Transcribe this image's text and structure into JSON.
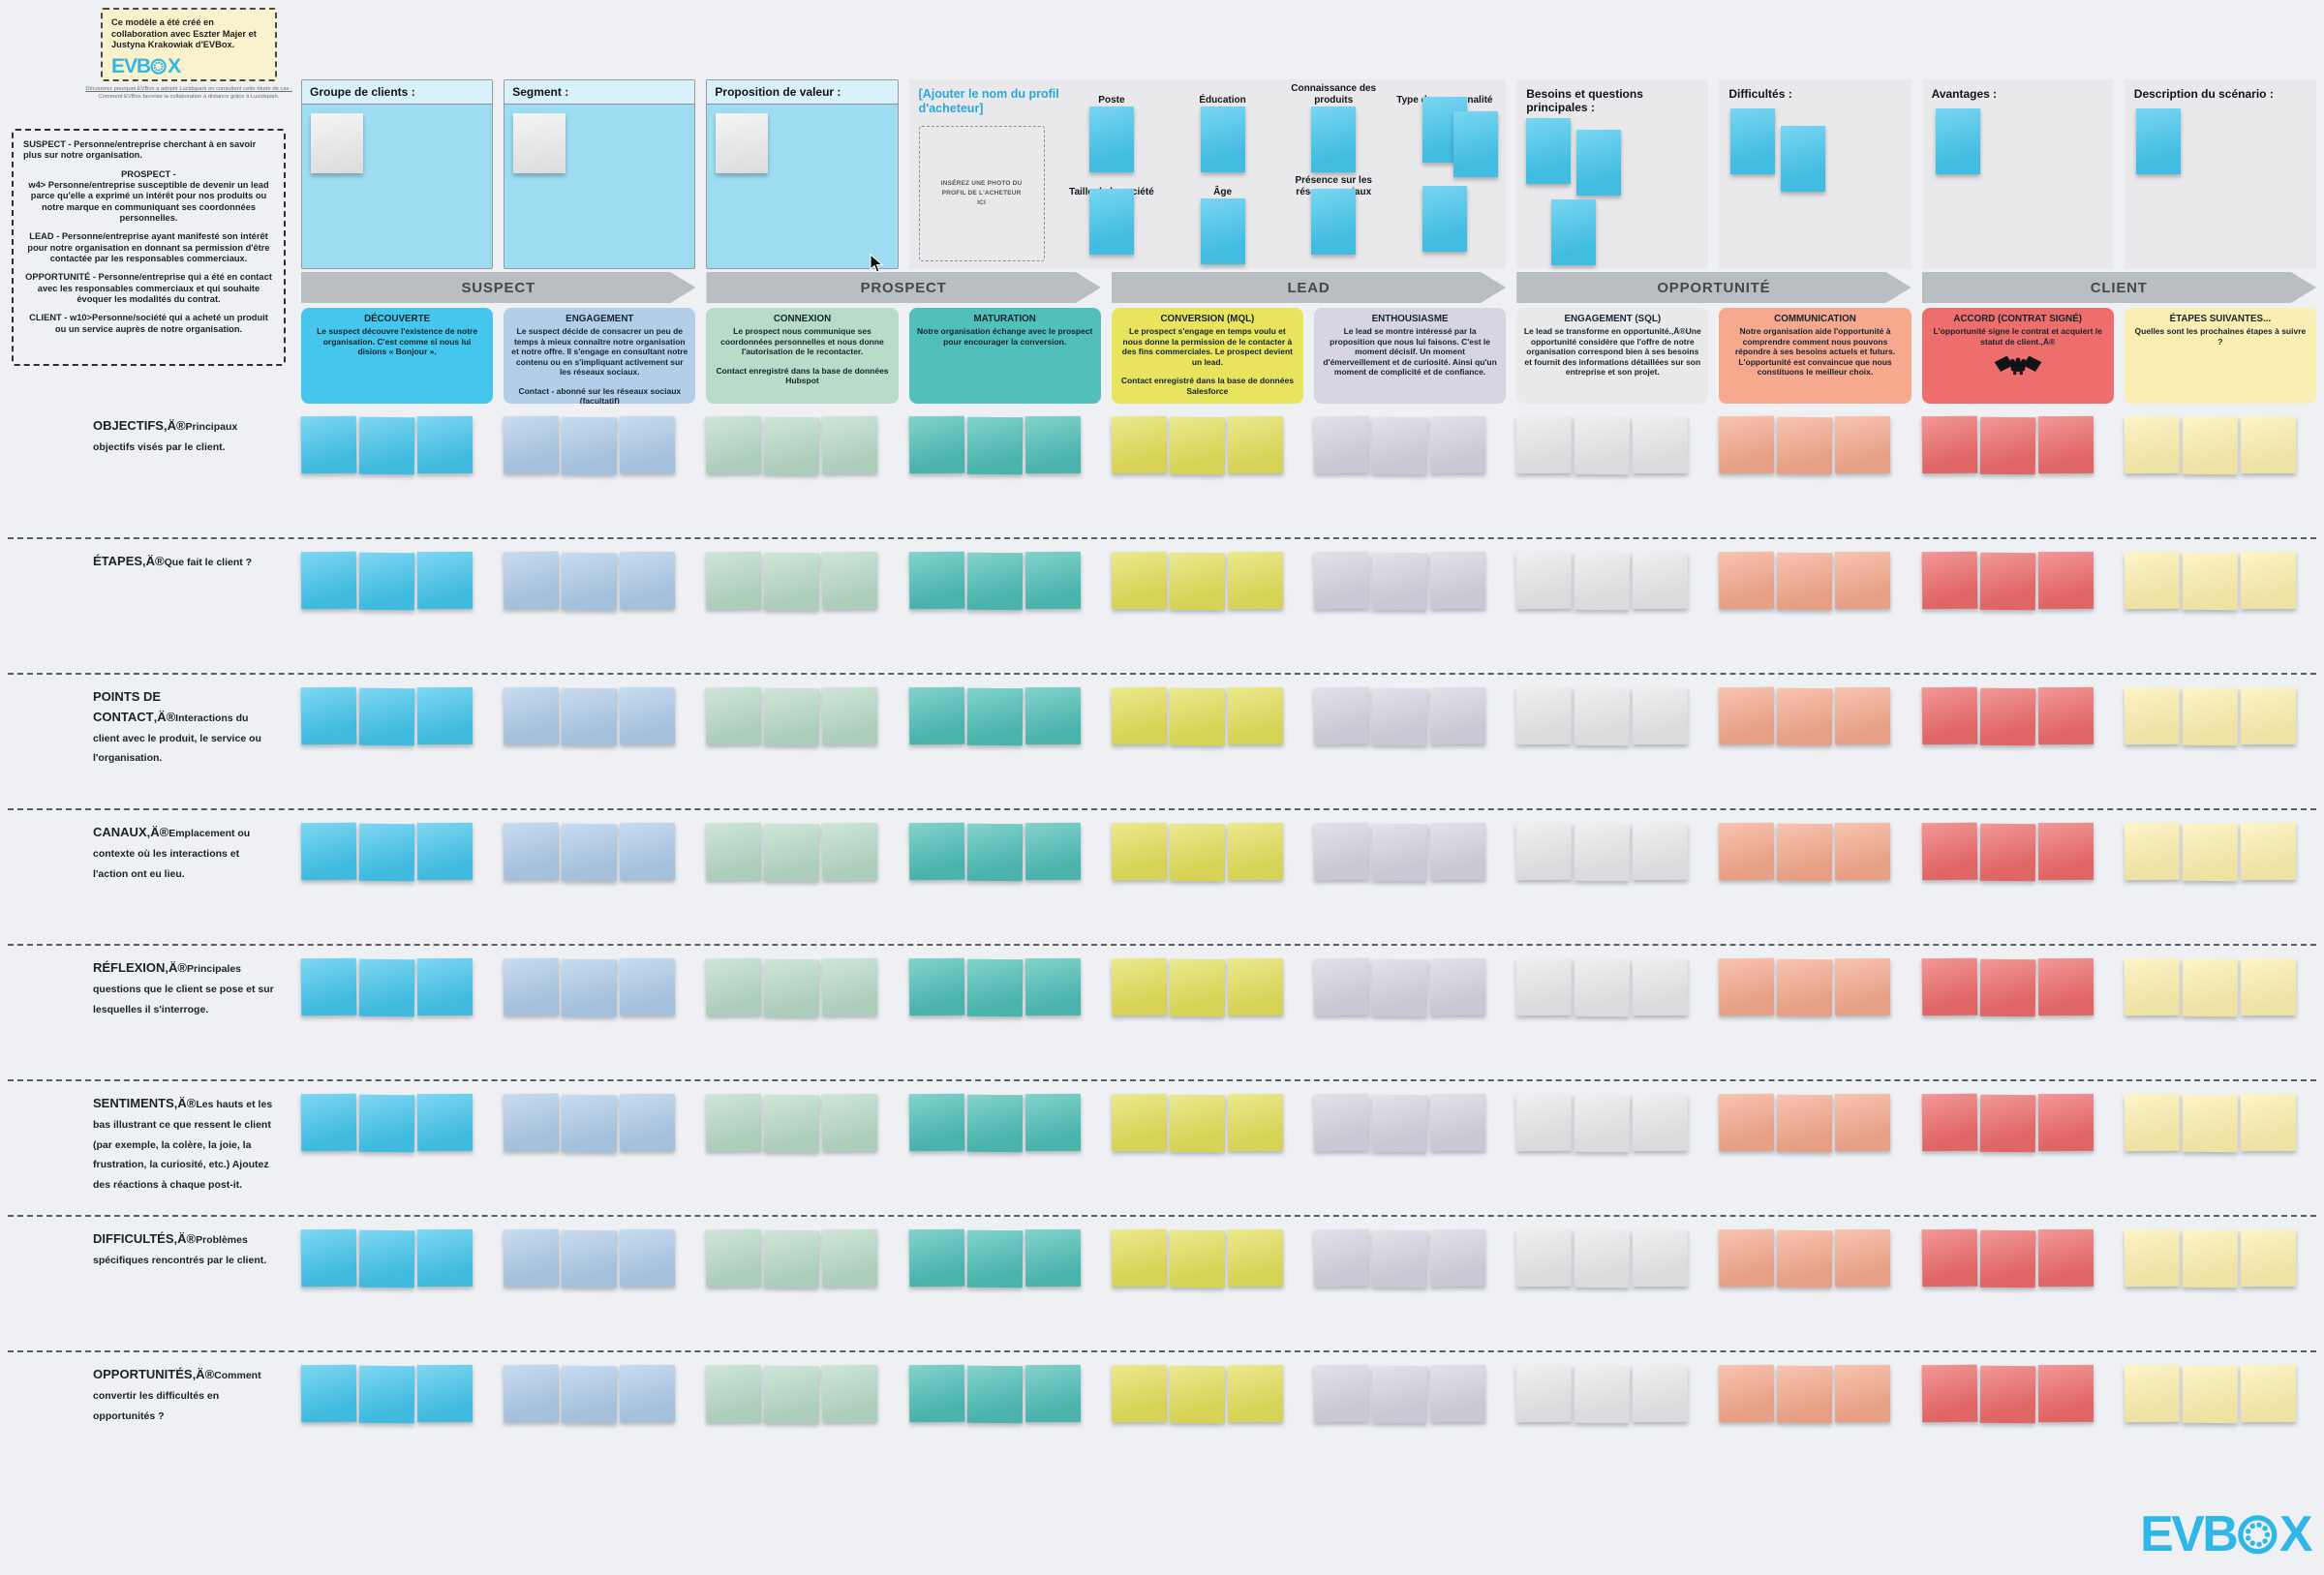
{
  "brand": {
    "left": "EVB",
    "right": "X"
  },
  "credit_note": {
    "text": "Ce modèle a été créé en collaboration avec Eszter Majer et Justyna Krakowiak d'EVBox.",
    "caption_line1": "Découvrez pourquoi EVBox a adopté Lucidspark en consultant cette étude de cas :",
    "caption_line2": "Comment EVBox favorise la collaboration à distance grâce à Lucidspark."
  },
  "definitions": [
    "SUSPECT - Personne/entreprise cherchant à en savoir plus sur notre organisation.",
    "PROSPECT -\nw4> Personne/entreprise susceptible de devenir un lead parce qu'elle a exprimé un intérêt pour nos produits ou notre marque en communiquant ses coordonnées personnelles.",
    "LEAD - Personne/entreprise ayant manifesté son intérêt pour notre organisation en donnant sa permission d'être contactée par les responsables commerciaux.",
    "OPPORTUNITÉ - Personne/entreprise qui a été en contact avec les responsables commerciaux et qui souhaite évoquer les modalités du contrat.",
    "CLIENT - w10>Personne/société qui a acheté un produit ou un service auprès de notre organisation."
  ],
  "profile_panels": [
    {
      "title": "Groupe de clients :"
    },
    {
      "title": "Segment :"
    },
    {
      "title": "Proposition de valeur :"
    }
  ],
  "persona": {
    "title": "[Ajouter le nom du profil d'acheteur]",
    "photo_placeholder": "INSÉREZ UNE PHOTO DU PROFIL DE L'ACHETEUR ICI",
    "attributes": [
      "Poste",
      "Éducation",
      "Connaissance des produits",
      "Type de personnalité",
      "Taille de la société",
      "Âge",
      "Présence sur les réseaux sociaux"
    ]
  },
  "info_panels": [
    {
      "title": "Besoins et questions principales :"
    },
    {
      "title": "Difficultés :"
    },
    {
      "title": "Avantages :"
    },
    {
      "title": "Description du scénario :"
    }
  ],
  "funnel_stages": [
    "SUSPECT",
    "PROSPECT",
    "LEAD",
    "OPPORTUNITÉ",
    "CLIENT"
  ],
  "stage_cards": [
    {
      "title": "DÉCOUVERTE",
      "body": "Le suspect découvre l'existence de notre organisation. C'est comme si nous lui disions « Bonjour ».",
      "color": "#45c6ed"
    },
    {
      "title": "ENGAGEMENT",
      "body": "Le suspect décide de consacrer un peu de temps à mieux connaître notre organisation et notre offre. Il s'engage en consultant notre contenu ou en s'impliquant activement sur les réseaux sociaux.",
      "note": "Contact - abonné sur les réseaux sociaux (facultatif)",
      "color": "#b3cee9"
    },
    {
      "title": "CONNEXION",
      "body": "Le prospect nous communique ses coordonnées personnelles et nous donne l'autorisation de le recontacter.",
      "note": "Contact enregistré dans la base de données Hubspot",
      "color": "#b9dcc8"
    },
    {
      "title": "MATURATION",
      "body": "Notre organisation échange avec le prospect pour encourager la conversion.",
      "color": "#52c0ba"
    },
    {
      "title": "CONVERSION (MQL)",
      "body": "Le prospect s'engage en temps voulu et nous donne la permission de le contacter à des fins commerciales. Le prospect devient un lead.",
      "note": "Contact enregistré dans la base de données Salesforce",
      "color": "#e8e45e"
    },
    {
      "title": "ENTHOUSIASME",
      "body": "Le lead se montre intéressé par la proposition que nous lui faisons. C'est le moment décisif. Un moment d'émerveillement et de curiosité. Ainsi qu'un moment de complicité et de confiance.",
      "color": "#d8d5e3"
    },
    {
      "title": "ENGAGEMENT (SQL)",
      "body": "Le lead se transforme en opportunité.‚Ä®Une opportunité considère que l'offre de notre organisation correspond bien à ses besoins et fournit des informations détaillées sur son entreprise et son projet.",
      "color": "#e9e9ea"
    },
    {
      "title": "COMMUNICATION",
      "body": "Notre organisation aide l'opportunité à comprendre comment nous pouvons répondre à ses besoins actuels et futurs. L'opportunité est convaincue que nous constituons le meilleur choix.",
      "color": "#f6a98e"
    },
    {
      "title": "ACCORD (CONTRAT SIGNÉ)",
      "body": "L'opportunité signe le contrat et acquiert le statut de client.‚Ä®",
      "color": "#ee6d6d",
      "icon": "handshake-icon"
    },
    {
      "title": "ÉTAPES SUIVANTES...",
      "body": "Quelles sont les prochaines étapes à suivre ?",
      "color": "#faeeb2"
    }
  ],
  "journey": {
    "rows": [
      {
        "title": "OBJECTIFS‚Ä®",
        "desc": "Principaux objectifs visés par le client."
      },
      {
        "title": "ÉTAPES‚Ä®",
        "desc": "Que fait le client ?"
      },
      {
        "title": "POINTS DE CONTACT‚Ä®",
        "desc": "Interactions du client avec le produit, le service ou l'organisation."
      },
      {
        "title": "CANAUX‚Ä®",
        "desc": "Emplacement ou contexte où les interactions et l'action ont eu lieu."
      },
      {
        "title": "RÉFLEXION‚Ä®",
        "desc": "Principales questions que le client se pose et sur lesquelles il s'interroge."
      },
      {
        "title": "SENTIMENTS‚Ä®",
        "desc": "Les hauts et les bas illustrant ce que ressent le client (par exemple, la colère, la joie, la frustration, la curiosité, etc.) Ajoutez des réactions à chaque post-it."
      },
      {
        "title": "DIFFICULTÉS‚Ä®",
        "desc": "Problèmes spécifiques rencontrés par le client."
      },
      {
        "title": "OPPORTUNITÉS‚Ä®",
        "desc": "Comment convertir les difficultés en opportunités ?"
      }
    ],
    "column_colors": [
      "#45c6ed",
      "#afcce9",
      "#b9dbc8",
      "#4fbfb7",
      "#e4e05c",
      "#d7d4e1",
      "#e9e9eb",
      "#f5aa8e",
      "#ee6b6b",
      "#fdf0af"
    ],
    "stickies_per_cell": 3
  },
  "colors": {
    "page_background": "#eef0f4",
    "accent_blue": "#30b7e8",
    "panel_gray": "#e9e9eb",
    "panel_blue": "#9edcf2",
    "arrow_gray": "#b9bec2",
    "note_yellow": "#faf2cc"
  }
}
